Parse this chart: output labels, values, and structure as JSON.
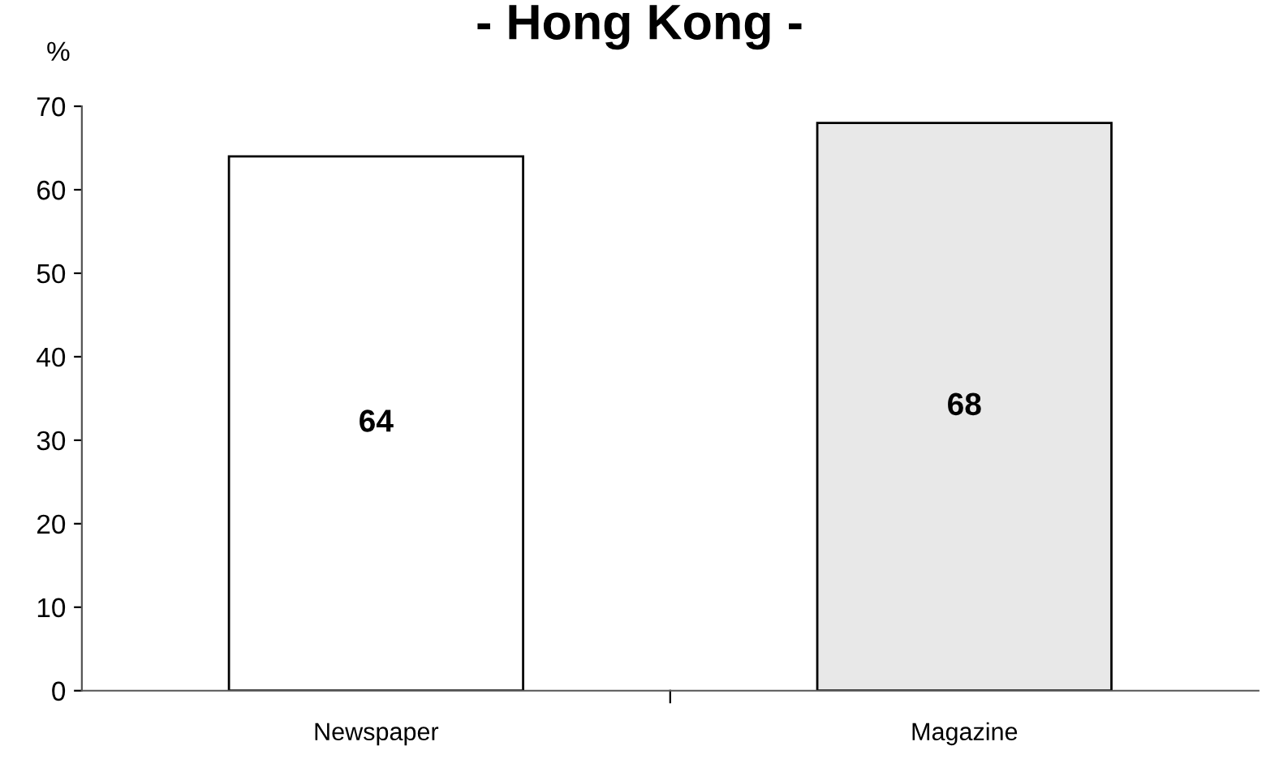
{
  "chart_data": {
    "type": "bar",
    "title": "- Hong Kong -",
    "ylabel": "%",
    "categories": [
      "Newspaper",
      "Magazine"
    ],
    "values": [
      64,
      68
    ],
    "colors": [
      "#ffffff",
      "#e8e8e8"
    ],
    "ylim": [
      0,
      70
    ],
    "yticks": [
      0,
      10,
      20,
      30,
      40,
      50,
      60,
      70
    ],
    "data_labels": true,
    "grid": false,
    "legend": false
  }
}
